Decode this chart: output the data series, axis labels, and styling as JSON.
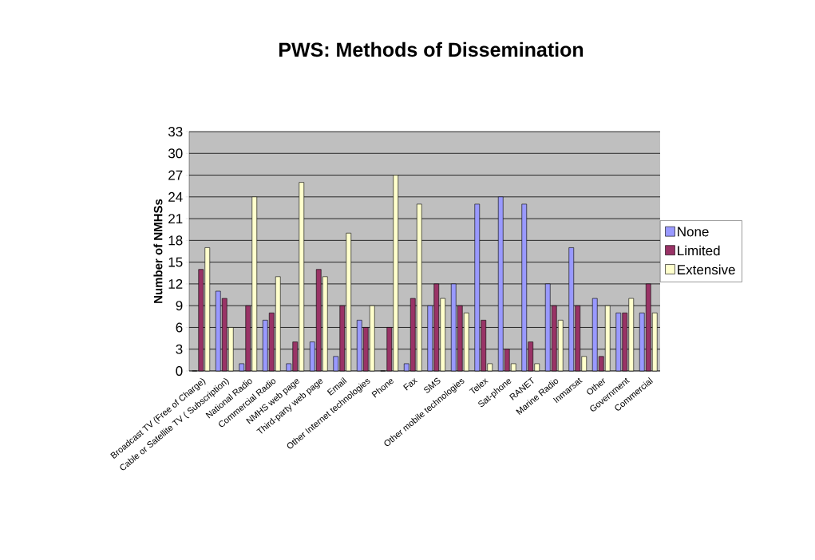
{
  "chart_data": {
    "type": "bar",
    "title": "PWS: Methods of Dissemination",
    "ylabel": "Number of NMHSs",
    "categories": [
      "Broadcast TV (Free of Charge)",
      "Cable or Satellite TV ( Subscription)",
      "National Radio",
      "Commercial Radio",
      "NMHS web page",
      "Third-party web page",
      "Email",
      "Other Internet technologies",
      "Phone",
      "Fax",
      "SMS",
      "Other mobile technologies",
      "Telex",
      "Sat-phone",
      "RANET",
      "Marine Radio",
      "Inmarsat",
      "Other",
      "Government",
      "Commercial"
    ],
    "series": [
      {
        "name": "None",
        "color": "#9999ff",
        "values": [
          0,
          11,
          1,
          7,
          1,
          4,
          2,
          7,
          0,
          1,
          9,
          12,
          23,
          24,
          23,
          12,
          17,
          10,
          8,
          8
        ]
      },
      {
        "name": "Limited",
        "color": "#993366",
        "values": [
          14,
          10,
          9,
          8,
          4,
          14,
          9,
          6,
          6,
          10,
          12,
          9,
          7,
          3,
          4,
          9,
          9,
          2,
          8,
          12
        ]
      },
      {
        "name": "Extensive",
        "color": "#ffffcc",
        "values": [
          17,
          6,
          24,
          13,
          26,
          13,
          19,
          9,
          27,
          23,
          10,
          8,
          1,
          1,
          1,
          7,
          2,
          9,
          10,
          8
        ]
      }
    ],
    "ylim": [
      0,
      33
    ],
    "yticks": [
      0,
      3,
      6,
      9,
      12,
      15,
      18,
      21,
      24,
      27,
      30,
      33
    ],
    "grid": "y",
    "legend": "right"
  }
}
